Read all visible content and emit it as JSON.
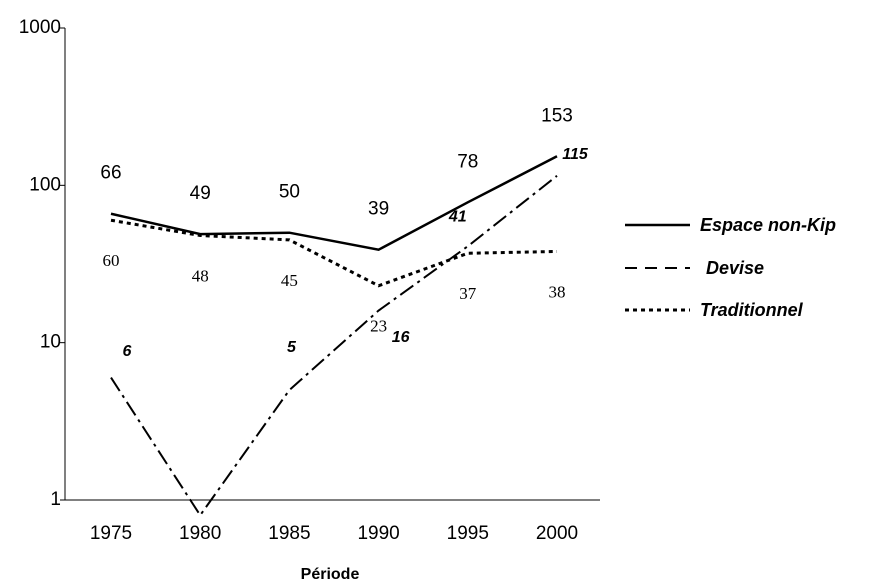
{
  "chart_data": {
    "type": "line",
    "xlabel": "Période",
    "categories": [
      "1975",
      "1980",
      "1985",
      "1990",
      "1995",
      "2000"
    ],
    "log_scale": true,
    "ylim": [
      1,
      1000
    ],
    "yticks": [
      1,
      10,
      100,
      1000
    ],
    "series": [
      {
        "name": "Espace non-Kip",
        "color": "#000000",
        "values": [
          66,
          49,
          50,
          39,
          78,
          153
        ]
      },
      {
        "name": "Devise",
        "color": "#000000",
        "values": [
          6,
          0.8,
          5,
          16,
          41,
          115
        ],
        "value_labels": [
          "6",
          null,
          "5",
          "16",
          "41",
          "115"
        ]
      },
      {
        "name": "Traditionnel",
        "color": "#000000",
        "values": [
          60,
          48,
          45,
          23,
          37,
          38
        ]
      }
    ]
  }
}
